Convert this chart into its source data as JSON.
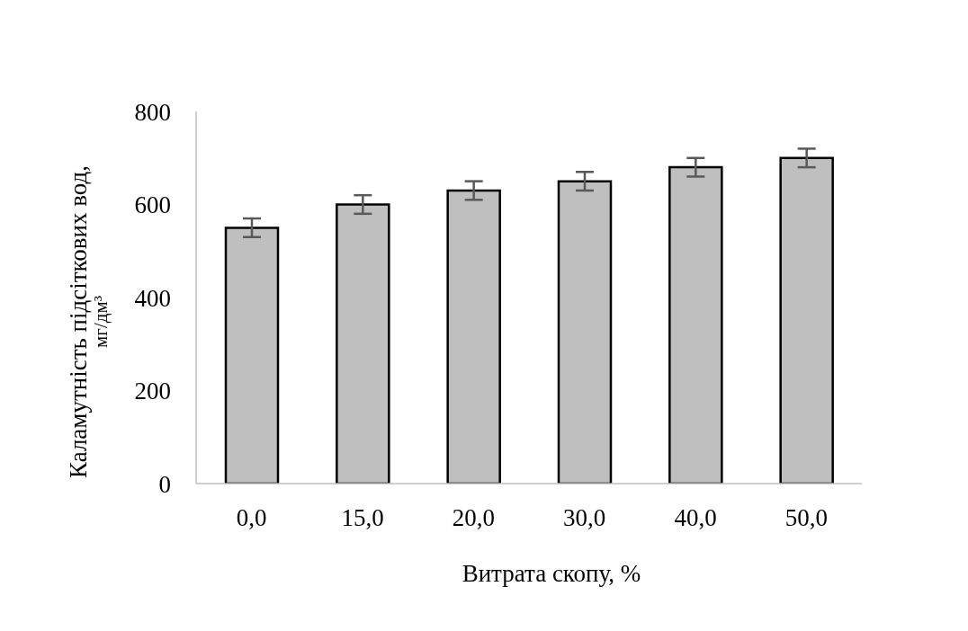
{
  "chart_data": {
    "type": "bar",
    "xlabel": "Витрата скопу, %",
    "ylabel": "Каламутність підсіткових вод,\nмг/дм³",
    "categories": [
      "0,0",
      "15,0",
      "20,0",
      "30,0",
      "40,0",
      "50,0"
    ],
    "values": [
      550,
      600,
      630,
      650,
      680,
      700
    ],
    "errors": [
      20,
      20,
      20,
      20,
      20,
      20
    ],
    "color": "#bfbfbf",
    "ylim": [
      0,
      800
    ],
    "yticks": [
      0,
      200,
      400,
      600,
      800
    ],
    "grid": false
  }
}
